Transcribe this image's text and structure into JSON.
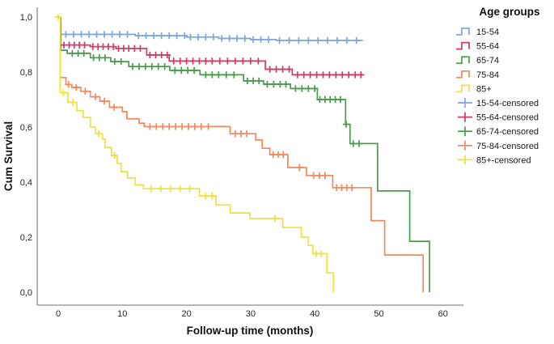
{
  "chart_data": {
    "type": "line",
    "subtype": "kaplan-meier-step",
    "title": "",
    "xlabel": "Follow-up time (months)",
    "ylabel": "Cum Survival",
    "legend_title": "Age groups",
    "xticks": [
      0,
      10,
      20,
      30,
      40,
      50,
      60
    ],
    "xtick_labels": [
      "0",
      "10",
      "20",
      "30",
      "40",
      "50",
      "60"
    ],
    "yticks": [
      0.0,
      0.2,
      0.4,
      0.6,
      0.8,
      1.0
    ],
    "ytick_labels": [
      "0,0",
      "0,2",
      "0,4",
      "0,6",
      "0,8",
      "1,0"
    ],
    "xlim": [
      -3.3,
      63.2
    ],
    "ylim": [
      -0.047,
      1.035
    ],
    "grid": false,
    "legend_position": "right-top",
    "axis_color": "#8c8c8c",
    "tick_label_color": "#262626",
    "title_color": "#111111",
    "series": [
      {
        "name": "15-54",
        "color": "#7da7dc",
        "steps": [
          [
            0,
            1.0
          ],
          [
            0.4,
            0.937
          ],
          [
            12,
            0.932
          ],
          [
            20,
            0.927
          ],
          [
            25,
            0.922
          ],
          [
            30,
            0.918
          ],
          [
            34,
            0.915
          ],
          [
            47.5,
            0.915
          ]
        ],
        "censors": [
          [
            1.2,
            0.937
          ],
          [
            2.4,
            0.937
          ],
          [
            3.6,
            0.937
          ],
          [
            4.8,
            0.937
          ],
          [
            6,
            0.937
          ],
          [
            7.2,
            0.937
          ],
          [
            8.4,
            0.937
          ],
          [
            9.6,
            0.937
          ],
          [
            10.8,
            0.937
          ],
          [
            12.5,
            0.932
          ],
          [
            13.7,
            0.932
          ],
          [
            14.9,
            0.932
          ],
          [
            16.1,
            0.932
          ],
          [
            17.3,
            0.932
          ],
          [
            18.5,
            0.932
          ],
          [
            19.7,
            0.932
          ],
          [
            20.6,
            0.927
          ],
          [
            21.8,
            0.927
          ],
          [
            23,
            0.927
          ],
          [
            24.2,
            0.927
          ],
          [
            25.5,
            0.922
          ],
          [
            26.7,
            0.922
          ],
          [
            27.9,
            0.922
          ],
          [
            29.1,
            0.922
          ],
          [
            30.4,
            0.918
          ],
          [
            31.6,
            0.918
          ],
          [
            32.8,
            0.918
          ],
          [
            34.5,
            0.915
          ],
          [
            36,
            0.915
          ],
          [
            37.5,
            0.915
          ],
          [
            39,
            0.915
          ],
          [
            40.5,
            0.915
          ],
          [
            42,
            0.915
          ],
          [
            43.5,
            0.915
          ],
          [
            45,
            0.915
          ],
          [
            46.5,
            0.915
          ]
        ]
      },
      {
        "name": "55-64",
        "color": "#d23a62",
        "steps": [
          [
            0,
            1.0
          ],
          [
            0.4,
            0.898
          ],
          [
            5,
            0.892
          ],
          [
            9,
            0.886
          ],
          [
            13.8,
            0.862
          ],
          [
            17.3,
            0.84
          ],
          [
            32.3,
            0.81
          ],
          [
            36.5,
            0.79
          ],
          [
            47.3,
            0.79
          ]
        ],
        "censors": [
          [
            0.9,
            0.898
          ],
          [
            1.7,
            0.898
          ],
          [
            2.5,
            0.898
          ],
          [
            3.3,
            0.898
          ],
          [
            4.1,
            0.898
          ],
          [
            5.4,
            0.892
          ],
          [
            6.2,
            0.892
          ],
          [
            7,
            0.892
          ],
          [
            7.8,
            0.892
          ],
          [
            8.6,
            0.892
          ],
          [
            9.4,
            0.886
          ],
          [
            10.2,
            0.886
          ],
          [
            11,
            0.886
          ],
          [
            11.9,
            0.886
          ],
          [
            12.8,
            0.886
          ],
          [
            14.3,
            0.862
          ],
          [
            15.2,
            0.862
          ],
          [
            16.1,
            0.862
          ],
          [
            17,
            0.862
          ],
          [
            18,
            0.84
          ],
          [
            19,
            0.84
          ],
          [
            20,
            0.84
          ],
          [
            21,
            0.84
          ],
          [
            22,
            0.84
          ],
          [
            23,
            0.84
          ],
          [
            24,
            0.84
          ],
          [
            25.2,
            0.84
          ],
          [
            26.4,
            0.84
          ],
          [
            27.6,
            0.84
          ],
          [
            28.8,
            0.84
          ],
          [
            30,
            0.84
          ],
          [
            31.2,
            0.84
          ],
          [
            33,
            0.81
          ],
          [
            34,
            0.81
          ],
          [
            35,
            0.81
          ],
          [
            36,
            0.81
          ],
          [
            37.3,
            0.79
          ],
          [
            38.3,
            0.79
          ],
          [
            39.3,
            0.79
          ],
          [
            40.3,
            0.79
          ],
          [
            41.3,
            0.79
          ],
          [
            42.3,
            0.79
          ],
          [
            43.3,
            0.79
          ],
          [
            44.3,
            0.79
          ],
          [
            45.3,
            0.79
          ],
          [
            46.3,
            0.79
          ],
          [
            47.2,
            0.79
          ]
        ]
      },
      {
        "name": "65-74",
        "color": "#4a9b4e",
        "steps": [
          [
            0,
            1.0
          ],
          [
            0.4,
            0.879
          ],
          [
            1.4,
            0.868
          ],
          [
            5,
            0.852
          ],
          [
            8.2,
            0.838
          ],
          [
            11,
            0.82
          ],
          [
            17.4,
            0.806
          ],
          [
            22.1,
            0.79
          ],
          [
            28.9,
            0.768
          ],
          [
            32,
            0.756
          ],
          [
            36.2,
            0.74
          ],
          [
            40.4,
            0.7
          ],
          [
            44.8,
            0.61
          ],
          [
            45.5,
            0.54
          ],
          [
            49.8,
            0.368
          ],
          [
            54.8,
            0.185
          ],
          [
            57.9,
            0.0
          ]
        ],
        "censors": [
          [
            2.2,
            0.868
          ],
          [
            3.1,
            0.868
          ],
          [
            4,
            0.868
          ],
          [
            5.5,
            0.852
          ],
          [
            6.4,
            0.852
          ],
          [
            7.3,
            0.852
          ],
          [
            8.8,
            0.838
          ],
          [
            9.8,
            0.838
          ],
          [
            11.6,
            0.82
          ],
          [
            12.6,
            0.82
          ],
          [
            13.6,
            0.82
          ],
          [
            14.6,
            0.82
          ],
          [
            15.6,
            0.82
          ],
          [
            16.6,
            0.82
          ],
          [
            18.2,
            0.806
          ],
          [
            19.2,
            0.806
          ],
          [
            20.2,
            0.806
          ],
          [
            21.2,
            0.806
          ],
          [
            23,
            0.79
          ],
          [
            24,
            0.79
          ],
          [
            25,
            0.79
          ],
          [
            26.2,
            0.79
          ],
          [
            27.4,
            0.79
          ],
          [
            29.5,
            0.768
          ],
          [
            30.4,
            0.768
          ],
          [
            31.3,
            0.768
          ],
          [
            32.6,
            0.756
          ],
          [
            33.6,
            0.756
          ],
          [
            34.6,
            0.756
          ],
          [
            35.5,
            0.756
          ],
          [
            37,
            0.74
          ],
          [
            38,
            0.74
          ],
          [
            39,
            0.74
          ],
          [
            40,
            0.74
          ],
          [
            40.8,
            0.7
          ],
          [
            41.6,
            0.7
          ],
          [
            42.4,
            0.7
          ],
          [
            43.2,
            0.7
          ],
          [
            44,
            0.7
          ],
          [
            44.9,
            0.61
          ],
          [
            46,
            0.54
          ],
          [
            46.9,
            0.54
          ]
        ]
      },
      {
        "name": "75-84",
        "color": "#f4875c",
        "steps": [
          [
            0,
            1.0
          ],
          [
            0.3,
            0.78
          ],
          [
            1.2,
            0.755
          ],
          [
            2.1,
            0.744
          ],
          [
            3.5,
            0.73
          ],
          [
            5,
            0.71
          ],
          [
            6.5,
            0.694
          ],
          [
            8,
            0.672
          ],
          [
            10,
            0.656
          ],
          [
            10.7,
            0.63
          ],
          [
            12.6,
            0.614
          ],
          [
            13.4,
            0.602
          ],
          [
            26.8,
            0.576
          ],
          [
            30.8,
            0.553
          ],
          [
            31.8,
            0.523
          ],
          [
            33,
            0.5
          ],
          [
            35.8,
            0.453
          ],
          [
            38.7,
            0.424
          ],
          [
            42.8,
            0.38
          ],
          [
            48.8,
            0.26
          ],
          [
            50.9,
            0.135
          ],
          [
            56.9,
            0.0
          ]
        ],
        "censors": [
          [
            1.6,
            0.755
          ],
          [
            2.8,
            0.744
          ],
          [
            4.2,
            0.73
          ],
          [
            5.8,
            0.71
          ],
          [
            7.2,
            0.694
          ],
          [
            8.7,
            0.672
          ],
          [
            14.3,
            0.602
          ],
          [
            15.3,
            0.602
          ],
          [
            16.3,
            0.602
          ],
          [
            17.3,
            0.602
          ],
          [
            18.3,
            0.602
          ],
          [
            19.3,
            0.602
          ],
          [
            20.3,
            0.602
          ],
          [
            21.3,
            0.602
          ],
          [
            22.3,
            0.602
          ],
          [
            23.4,
            0.602
          ],
          [
            27.6,
            0.576
          ],
          [
            28.5,
            0.576
          ],
          [
            29.4,
            0.576
          ],
          [
            33.5,
            0.5
          ],
          [
            34.3,
            0.5
          ],
          [
            35.1,
            0.5
          ],
          [
            37.6,
            0.453
          ],
          [
            39.8,
            0.424
          ],
          [
            40.7,
            0.424
          ],
          [
            41.6,
            0.424
          ],
          [
            43.4,
            0.38
          ],
          [
            44.2,
            0.38
          ],
          [
            45,
            0.38
          ],
          [
            45.8,
            0.38
          ]
        ]
      },
      {
        "name": "85+",
        "color": "#ece33f",
        "steps": [
          [
            0,
            1.0
          ],
          [
            0.3,
            0.725
          ],
          [
            1.5,
            0.69
          ],
          [
            2.9,
            0.66
          ],
          [
            3.9,
            0.635
          ],
          [
            5,
            0.6
          ],
          [
            5.8,
            0.576
          ],
          [
            6.9,
            0.556
          ],
          [
            7.3,
            0.526
          ],
          [
            8.3,
            0.497
          ],
          [
            9.2,
            0.468
          ],
          [
            9.8,
            0.438
          ],
          [
            10.8,
            0.415
          ],
          [
            12,
            0.39
          ],
          [
            13.3,
            0.376
          ],
          [
            22,
            0.35
          ],
          [
            24.6,
            0.317
          ],
          [
            26.8,
            0.288
          ],
          [
            29.9,
            0.268
          ],
          [
            35,
            0.235
          ],
          [
            37.9,
            0.2
          ],
          [
            39,
            0.17
          ],
          [
            39.7,
            0.14
          ],
          [
            41.9,
            0.07
          ],
          [
            42.9,
            0.0
          ]
        ],
        "censors": [
          [
            0,
            1.0
          ],
          [
            0.8,
            0.725
          ],
          [
            2.3,
            0.69
          ],
          [
            6.3,
            0.576
          ],
          [
            8.8,
            0.497
          ],
          [
            14.5,
            0.376
          ],
          [
            16,
            0.376
          ],
          [
            17.5,
            0.376
          ],
          [
            19,
            0.376
          ],
          [
            20.5,
            0.376
          ],
          [
            23,
            0.35
          ],
          [
            24,
            0.35
          ],
          [
            33.8,
            0.268
          ],
          [
            40.2,
            0.14
          ],
          [
            41,
            0.14
          ]
        ]
      }
    ],
    "legend_entries": [
      {
        "label": "15-54",
        "type": "line",
        "series": 0
      },
      {
        "label": "55-64",
        "type": "line",
        "series": 1
      },
      {
        "label": "65-74",
        "type": "line",
        "series": 2
      },
      {
        "label": "75-84",
        "type": "line",
        "series": 3
      },
      {
        "label": "85+",
        "type": "line",
        "series": 4
      },
      {
        "label": "15-54-censored",
        "type": "censor",
        "series": 0
      },
      {
        "label": "55-64-censored",
        "type": "censor",
        "series": 1
      },
      {
        "label": "65-74-censored",
        "type": "censor",
        "series": 2
      },
      {
        "label": "75-84-censored",
        "type": "censor",
        "series": 3
      },
      {
        "label": "85+-censored",
        "type": "censor",
        "series": 4
      }
    ]
  }
}
